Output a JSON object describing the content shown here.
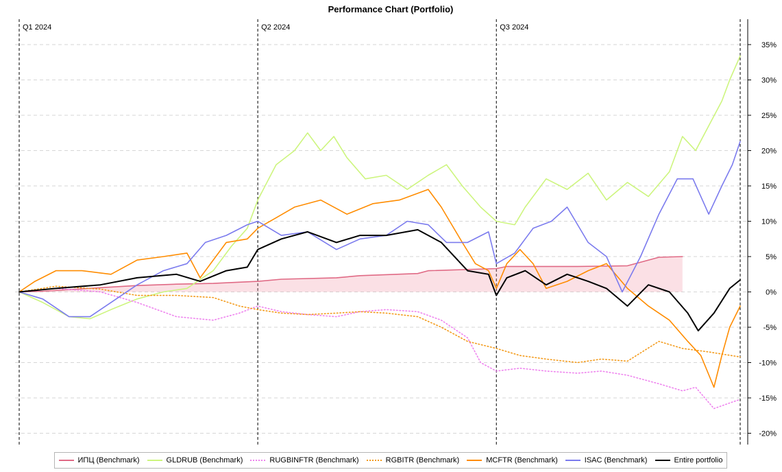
{
  "chart_data": {
    "type": "line",
    "title": "Performance Chart (Portfolio)",
    "x_range": [
      "2024-01-01",
      "2024-10-02"
    ],
    "ylim": [
      -21,
      38
    ],
    "y_ticks": [
      35,
      30,
      25,
      20,
      15,
      10,
      5,
      0,
      -5,
      -10,
      -15,
      -20
    ],
    "y_tick_labels": [
      "35%",
      "30%",
      "25%",
      "20%",
      "15%",
      "10%",
      "5%",
      "0%",
      "-5%",
      "-10%",
      "-15%",
      "-20%"
    ],
    "y_axis_position": "right",
    "grid": "horizontal dashed",
    "legend_position": "bottom",
    "quarter_markers": [
      {
        "label": "Q1 2024",
        "date": "2024-01-01"
      },
      {
        "label": "Q2 2024",
        "date": "2024-04-01"
      },
      {
        "label": "Q3 2024",
        "date": "2024-07-01"
      }
    ],
    "end_marker_date": "2024-10-02",
    "series": [
      {
        "name": "ИПЦ (Benchmark)",
        "color": "#e06a85",
        "style": "solid",
        "fill_to_zero": true,
        "points": [
          [
            "2024-01-01",
            0
          ],
          [
            "2024-01-10",
            0.1
          ],
          [
            "2024-02-01",
            0.6
          ],
          [
            "2024-02-15",
            0.9
          ],
          [
            "2024-03-01",
            1.1
          ],
          [
            "2024-03-15",
            1.2
          ],
          [
            "2024-04-01",
            1.5
          ],
          [
            "2024-04-10",
            1.8
          ],
          [
            "2024-05-01",
            2.0
          ],
          [
            "2024-05-10",
            2.3
          ],
          [
            "2024-06-01",
            2.6
          ],
          [
            "2024-06-05",
            3.0
          ],
          [
            "2024-07-01",
            3.3
          ],
          [
            "2024-07-05",
            3.6
          ],
          [
            "2024-08-01",
            3.6
          ],
          [
            "2024-08-20",
            3.7
          ],
          [
            "2024-09-01",
            4.9
          ],
          [
            "2024-09-10",
            5.0
          ]
        ]
      },
      {
        "name": "GLDRUB (Benchmark)",
        "color": "#cdf57e",
        "style": "solid",
        "points": [
          [
            "2024-01-01",
            0
          ],
          [
            "2024-01-10",
            -1.5
          ],
          [
            "2024-01-20",
            -3.5
          ],
          [
            "2024-01-28",
            -3.8
          ],
          [
            "2024-02-05",
            -2.5
          ],
          [
            "2024-02-15",
            -1
          ],
          [
            "2024-02-25",
            0
          ],
          [
            "2024-03-05",
            0.5
          ],
          [
            "2024-03-15",
            3
          ],
          [
            "2024-03-22",
            6.5
          ],
          [
            "2024-03-28",
            9
          ],
          [
            "2024-04-01",
            13
          ],
          [
            "2024-04-08",
            18
          ],
          [
            "2024-04-15",
            20
          ],
          [
            "2024-04-20",
            22.5
          ],
          [
            "2024-04-25",
            20
          ],
          [
            "2024-04-30",
            22
          ],
          [
            "2024-05-05",
            19
          ],
          [
            "2024-05-12",
            16
          ],
          [
            "2024-05-20",
            16.5
          ],
          [
            "2024-05-28",
            14.5
          ],
          [
            "2024-06-05",
            16.5
          ],
          [
            "2024-06-12",
            18
          ],
          [
            "2024-06-18",
            15
          ],
          [
            "2024-06-25",
            12
          ],
          [
            "2024-07-01",
            10
          ],
          [
            "2024-07-08",
            9.5
          ],
          [
            "2024-07-12",
            12
          ],
          [
            "2024-07-20",
            16
          ],
          [
            "2024-07-28",
            14.5
          ],
          [
            "2024-08-05",
            16.8
          ],
          [
            "2024-08-12",
            13
          ],
          [
            "2024-08-20",
            15.5
          ],
          [
            "2024-08-28",
            13.5
          ],
          [
            "2024-09-05",
            17
          ],
          [
            "2024-09-10",
            22
          ],
          [
            "2024-09-15",
            20
          ],
          [
            "2024-09-20",
            23.5
          ],
          [
            "2024-09-25",
            27
          ],
          [
            "2024-09-28",
            30
          ],
          [
            "2024-10-02",
            33.4
          ]
        ]
      },
      {
        "name": "RUGBINFTR (Benchmark)",
        "color": "#ee82ee",
        "style": "dotted",
        "points": [
          [
            "2024-01-01",
            0
          ],
          [
            "2024-01-15",
            0.5
          ],
          [
            "2024-02-01",
            0
          ],
          [
            "2024-02-15",
            -1.5
          ],
          [
            "2024-03-01",
            -3.5
          ],
          [
            "2024-03-15",
            -4
          ],
          [
            "2024-03-25",
            -3
          ],
          [
            "2024-04-01",
            -2
          ],
          [
            "2024-04-10",
            -2.8
          ],
          [
            "2024-04-20",
            -3.2
          ],
          [
            "2024-05-01",
            -3.5
          ],
          [
            "2024-05-10",
            -2.8
          ],
          [
            "2024-05-20",
            -2.5
          ],
          [
            "2024-06-01",
            -2.8
          ],
          [
            "2024-06-10",
            -4
          ],
          [
            "2024-06-20",
            -6.5
          ],
          [
            "2024-06-25",
            -10
          ],
          [
            "2024-07-01",
            -11.2
          ],
          [
            "2024-07-10",
            -10.8
          ],
          [
            "2024-07-20",
            -11.2
          ],
          [
            "2024-08-01",
            -11.5
          ],
          [
            "2024-08-10",
            -11.2
          ],
          [
            "2024-08-20",
            -11.8
          ],
          [
            "2024-09-01",
            -13
          ],
          [
            "2024-09-10",
            -14
          ],
          [
            "2024-09-15",
            -13.5
          ],
          [
            "2024-09-22",
            -16.5
          ],
          [
            "2024-10-02",
            -15.2
          ]
        ]
      },
      {
        "name": "RGBITR (Benchmark)",
        "color": "#f39a1a",
        "style": "dotted",
        "points": [
          [
            "2024-01-01",
            0
          ],
          [
            "2024-01-15",
            0.8
          ],
          [
            "2024-02-01",
            0.4
          ],
          [
            "2024-02-15",
            -0.5
          ],
          [
            "2024-03-01",
            -0.5
          ],
          [
            "2024-03-15",
            -0.8
          ],
          [
            "2024-03-25",
            -2
          ],
          [
            "2024-04-01",
            -2.5
          ],
          [
            "2024-04-10",
            -3
          ],
          [
            "2024-04-20",
            -3.2
          ],
          [
            "2024-05-01",
            -3
          ],
          [
            "2024-05-10",
            -2.8
          ],
          [
            "2024-05-20",
            -3
          ],
          [
            "2024-06-01",
            -3.5
          ],
          [
            "2024-06-10",
            -5
          ],
          [
            "2024-06-20",
            -7
          ],
          [
            "2024-07-01",
            -8
          ],
          [
            "2024-07-10",
            -9
          ],
          [
            "2024-07-20",
            -9.5
          ],
          [
            "2024-08-01",
            -10
          ],
          [
            "2024-08-10",
            -9.5
          ],
          [
            "2024-08-20",
            -9.8
          ],
          [
            "2024-09-01",
            -7
          ],
          [
            "2024-09-10",
            -8
          ],
          [
            "2024-09-20",
            -8.5
          ],
          [
            "2024-10-02",
            -9.2
          ]
        ]
      },
      {
        "name": "MCFTR (Benchmark)",
        "color": "#ff8c00",
        "style": "solid",
        "points": [
          [
            "2024-01-01",
            0
          ],
          [
            "2024-01-07",
            1.5
          ],
          [
            "2024-01-15",
            3
          ],
          [
            "2024-01-25",
            3
          ],
          [
            "2024-02-05",
            2.5
          ],
          [
            "2024-02-15",
            4.5
          ],
          [
            "2024-02-25",
            5
          ],
          [
            "2024-03-05",
            5.5
          ],
          [
            "2024-03-10",
            2
          ],
          [
            "2024-03-20",
            7
          ],
          [
            "2024-03-28",
            7.5
          ],
          [
            "2024-04-01",
            9
          ],
          [
            "2024-04-08",
            10.5
          ],
          [
            "2024-04-15",
            12
          ],
          [
            "2024-04-25",
            13
          ],
          [
            "2024-05-05",
            11
          ],
          [
            "2024-05-15",
            12.5
          ],
          [
            "2024-05-25",
            13
          ],
          [
            "2024-06-05",
            14.5
          ],
          [
            "2024-06-10",
            12
          ],
          [
            "2024-06-18",
            7
          ],
          [
            "2024-06-23",
            4
          ],
          [
            "2024-06-28",
            3
          ],
          [
            "2024-07-01",
            0.5
          ],
          [
            "2024-07-05",
            4
          ],
          [
            "2024-07-10",
            6
          ],
          [
            "2024-07-15",
            4
          ],
          [
            "2024-07-20",
            0.5
          ],
          [
            "2024-07-28",
            1.5
          ],
          [
            "2024-08-05",
            3
          ],
          [
            "2024-08-12",
            4
          ],
          [
            "2024-08-20",
            0.5
          ],
          [
            "2024-08-28",
            -2
          ],
          [
            "2024-09-05",
            -4
          ],
          [
            "2024-09-12",
            -7
          ],
          [
            "2024-09-17",
            -9
          ],
          [
            "2024-09-22",
            -13.5
          ],
          [
            "2024-09-25",
            -9
          ],
          [
            "2024-09-28",
            -5
          ],
          [
            "2024-10-02",
            -2
          ]
        ]
      },
      {
        "name": "ISAC (Benchmark)",
        "color": "#7b7bee",
        "style": "solid",
        "points": [
          [
            "2024-01-01",
            0
          ],
          [
            "2024-01-10",
            -1
          ],
          [
            "2024-01-20",
            -3.5
          ],
          [
            "2024-01-28",
            -3.5
          ],
          [
            "2024-02-05",
            -1.5
          ],
          [
            "2024-02-15",
            1
          ],
          [
            "2024-02-25",
            3
          ],
          [
            "2024-03-05",
            4
          ],
          [
            "2024-03-12",
            7
          ],
          [
            "2024-03-20",
            8
          ],
          [
            "2024-03-28",
            9.5
          ],
          [
            "2024-04-01",
            10
          ],
          [
            "2024-04-10",
            8
          ],
          [
            "2024-04-20",
            8.5
          ],
          [
            "2024-05-01",
            6
          ],
          [
            "2024-05-10",
            7.5
          ],
          [
            "2024-05-20",
            8
          ],
          [
            "2024-05-28",
            10
          ],
          [
            "2024-06-05",
            9.5
          ],
          [
            "2024-06-12",
            7
          ],
          [
            "2024-06-20",
            7
          ],
          [
            "2024-06-28",
            8.5
          ],
          [
            "2024-07-01",
            4
          ],
          [
            "2024-07-08",
            5.5
          ],
          [
            "2024-07-15",
            9
          ],
          [
            "2024-07-22",
            10
          ],
          [
            "2024-07-28",
            12
          ],
          [
            "2024-08-05",
            7
          ],
          [
            "2024-08-12",
            5
          ],
          [
            "2024-08-18",
            0
          ],
          [
            "2024-08-25",
            5
          ],
          [
            "2024-09-01",
            11
          ],
          [
            "2024-09-08",
            16
          ],
          [
            "2024-09-14",
            16
          ],
          [
            "2024-09-20",
            11
          ],
          [
            "2024-09-25",
            15
          ],
          [
            "2024-09-29",
            18
          ],
          [
            "2024-10-02",
            21.3
          ]
        ]
      },
      {
        "name": "Entire portfolio",
        "color": "#000000",
        "style": "solid",
        "width": 2,
        "points": [
          [
            "2024-01-01",
            0
          ],
          [
            "2024-01-15",
            0.5
          ],
          [
            "2024-02-01",
            1
          ],
          [
            "2024-02-15",
            2
          ],
          [
            "2024-03-01",
            2.5
          ],
          [
            "2024-03-10",
            1.5
          ],
          [
            "2024-03-20",
            3
          ],
          [
            "2024-03-28",
            3.5
          ],
          [
            "2024-04-01",
            6
          ],
          [
            "2024-04-10",
            7.5
          ],
          [
            "2024-04-20",
            8.5
          ],
          [
            "2024-05-01",
            7
          ],
          [
            "2024-05-10",
            8
          ],
          [
            "2024-05-20",
            8
          ],
          [
            "2024-06-01",
            8.8
          ],
          [
            "2024-06-10",
            7
          ],
          [
            "2024-06-20",
            3
          ],
          [
            "2024-06-28",
            2.5
          ],
          [
            "2024-07-01",
            -0.5
          ],
          [
            "2024-07-05",
            2
          ],
          [
            "2024-07-12",
            3
          ],
          [
            "2024-07-20",
            1
          ],
          [
            "2024-07-28",
            2.5
          ],
          [
            "2024-08-05",
            1.5
          ],
          [
            "2024-08-12",
            0.5
          ],
          [
            "2024-08-20",
            -2
          ],
          [
            "2024-08-28",
            1
          ],
          [
            "2024-09-05",
            0
          ],
          [
            "2024-09-12",
            -3
          ],
          [
            "2024-09-16",
            -5.5
          ],
          [
            "2024-09-22",
            -3
          ],
          [
            "2024-09-28",
            0.5
          ],
          [
            "2024-10-02",
            1.7
          ]
        ]
      }
    ]
  }
}
